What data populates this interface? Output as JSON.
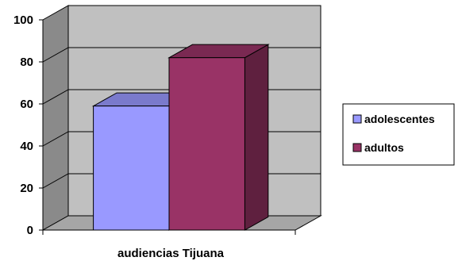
{
  "chart_data": {
    "type": "bar",
    "style": "3d-clustered-column",
    "categories": [
      "audiencias Tijuana"
    ],
    "series": [
      {
        "name": "adolescentes",
        "values": [
          59
        ],
        "color": "#9999ff"
      },
      {
        "name": "adultos",
        "values": [
          82
        ],
        "color": "#993366"
      }
    ],
    "ylim": [
      0,
      100
    ],
    "yticks": [
      "0",
      "20",
      "40",
      "60",
      "80",
      "100"
    ],
    "grid": true,
    "legend_position": "right",
    "wall_color": "#c0c0c0",
    "floor_color": "#a6a6a6"
  }
}
